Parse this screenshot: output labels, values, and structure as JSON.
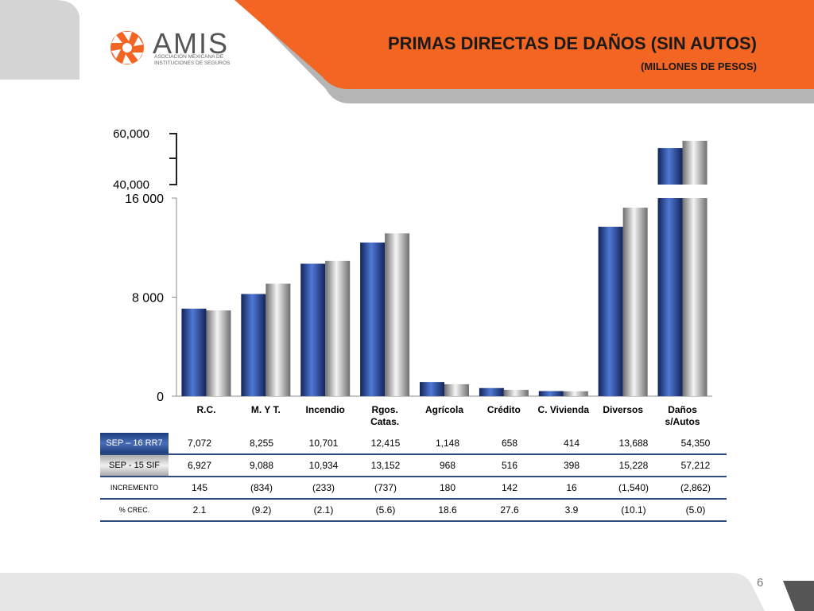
{
  "header": {
    "logo_name": "AMIS",
    "logo_subtitle": "ASOCIACIÓN MEXICANA DE INSTITUCIONES DE SEGUROS",
    "title": "PRIMAS DIRECTAS DE  DAÑOS (SIN AUTOS)",
    "subtitle": "(MILLONES DE PESOS)"
  },
  "colors": {
    "orange": "#f26522",
    "gray_band": "#b5b5b5",
    "series_blue": "#2b4d9c",
    "series_gray": "#9a9a9a",
    "table_rule": "#2d4d7f"
  },
  "chart_data": {
    "type": "bar",
    "categories": [
      "R.C.",
      "M. Y T.",
      "Incendio",
      "Rgos.\nCatas.",
      "Agrícola",
      "Crédito",
      "C. Vivienda",
      "Diversos",
      "Daños\ns/Autos"
    ],
    "series": [
      {
        "name": "SEP – 16 RR7",
        "values": [
          7072,
          8255,
          10701,
          12415,
          1148,
          658,
          414,
          13688,
          54350
        ]
      },
      {
        "name": "SEP -  15 SIF",
        "values": [
          6927,
          9088,
          10934,
          13152,
          968,
          516,
          398,
          15228,
          57212
        ]
      }
    ],
    "y_ticks_main": [
      "0",
      "8 000",
      "16 000"
    ],
    "y_ticks_break": [
      "40,000",
      "60,000"
    ],
    "ylim_main": [
      0,
      16000
    ],
    "ylim_break": [
      40000,
      60000
    ],
    "grid": false,
    "legend": "none"
  },
  "table": {
    "rows": [
      {
        "label": "SEP – 16 RR7",
        "values": [
          "7,072",
          "8,255",
          "10,701",
          "12,415",
          "1,148",
          "658",
          "414",
          "13,688",
          "54,350"
        ]
      },
      {
        "label": "SEP -  15 SIF",
        "values": [
          "6,927",
          "9,088",
          "10,934",
          "13,152",
          "968",
          "516",
          "398",
          "15,228",
          "57,212"
        ]
      },
      {
        "label": "INCREMENTO",
        "values": [
          "145",
          "(834)",
          "(233)",
          "(737)",
          "180",
          "142",
          "16",
          "(1,540)",
          "(2,862)"
        ]
      },
      {
        "label": "% CREC.",
        "values": [
          "2.1",
          "(9.2)",
          "(2.1)",
          "(5.6)",
          "18.6",
          "27.6",
          "3.9",
          "(10.1)",
          "(5.0)"
        ]
      }
    ]
  },
  "page_number": "6"
}
